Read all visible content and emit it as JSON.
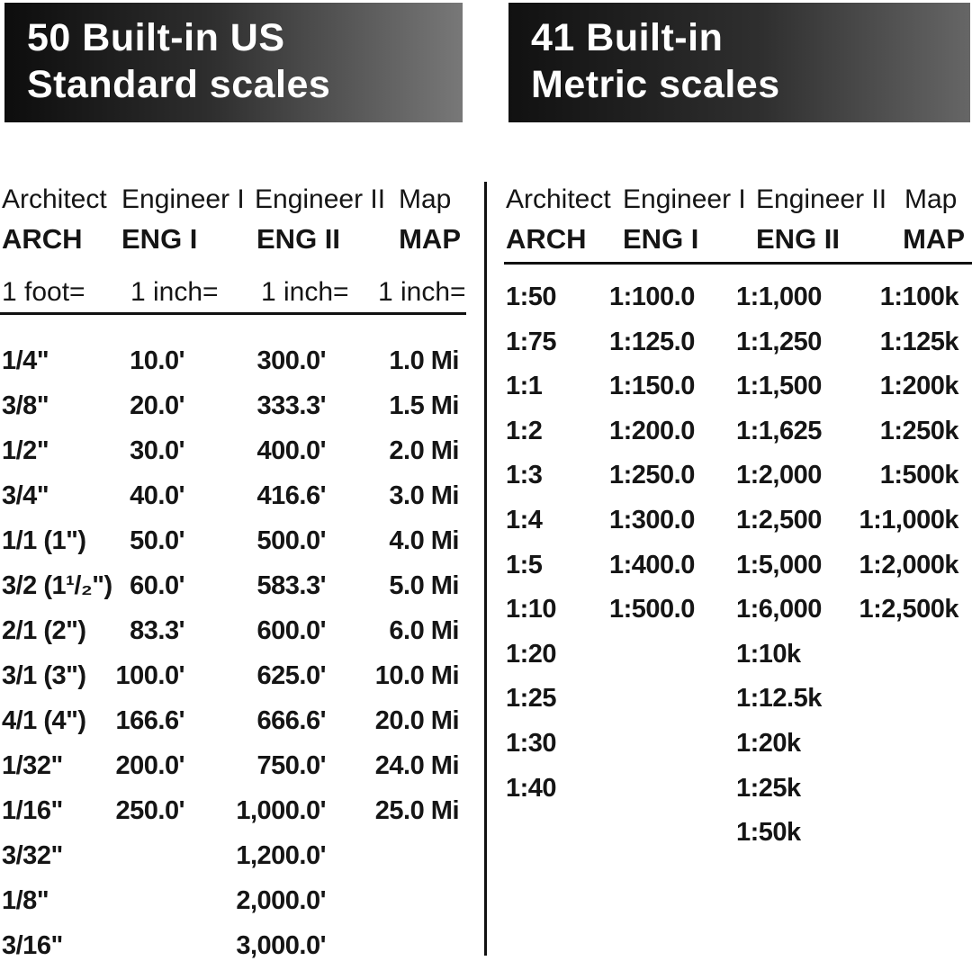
{
  "banners": {
    "us": {
      "line1": "50 Built-in US",
      "line2": "Standard scales"
    },
    "metric": {
      "line1": "41 Built-in",
      "line2": "Metric scales"
    }
  },
  "colors": {
    "banner_dark": "#0d0d0d",
    "banner_light": "#787878",
    "text": "#151515",
    "rule": "#111111",
    "background": "#ffffff"
  },
  "us_table": {
    "col_headers": [
      "Architect",
      "Engineer I",
      "Engineer II",
      "Map"
    ],
    "col_abbrevs": [
      "ARCH",
      "ENG I",
      "ENG II",
      "MAP"
    ],
    "unit_row": [
      "1 foot=",
      "1 inch=",
      "1 inch=",
      "1 inch="
    ],
    "rows": [
      [
        "1/4\"",
        "10.0'",
        "300.0'",
        "1.0 Mi"
      ],
      [
        "3/8\"",
        "20.0'",
        "333.3'",
        "1.5 Mi"
      ],
      [
        "1/2\"",
        "30.0'",
        "400.0'",
        "2.0 Mi"
      ],
      [
        "3/4\"",
        "40.0'",
        "416.6'",
        "3.0 Mi"
      ],
      [
        "1/1 (1\")",
        "50.0'",
        "500.0'",
        "4.0 Mi"
      ],
      [
        "3/2 (1¹/₂\")",
        "60.0'",
        "583.3'",
        "5.0 Mi"
      ],
      [
        "2/1 (2\")",
        "83.3'",
        "600.0'",
        "6.0 Mi"
      ],
      [
        "3/1 (3\")",
        "100.0'",
        "625.0'",
        "10.0 Mi"
      ],
      [
        "4/1 (4\")",
        "166.6'",
        "666.6'",
        "20.0 Mi"
      ],
      [
        "1/32\"",
        "200.0'",
        "750.0'",
        "24.0 Mi"
      ],
      [
        "1/16\"",
        "250.0'",
        "1,000.0'",
        "25.0 Mi"
      ],
      [
        "3/32\"",
        "",
        "1,200.0'",
        ""
      ],
      [
        "1/8\"",
        "",
        "2,000.0'",
        ""
      ],
      [
        "3/16\"",
        "",
        "3,000.0'",
        ""
      ]
    ]
  },
  "metric_table": {
    "col_headers": [
      "Architect",
      "Engineer I",
      "Engineer II",
      "Map"
    ],
    "col_abbrevs": [
      "ARCH",
      "ENG I",
      "ENG II",
      "MAP"
    ],
    "rows": [
      [
        "1:50",
        "1:100.0",
        "1:1,000",
        "1:100k"
      ],
      [
        "1:75",
        "1:125.0",
        "1:1,250",
        "1:125k"
      ],
      [
        "1:1",
        "1:150.0",
        "1:1,500",
        "1:200k"
      ],
      [
        "1:2",
        "1:200.0",
        "1:1,625",
        "1:250k"
      ],
      [
        "1:3",
        "1:250.0",
        "1:2,000",
        "1:500k"
      ],
      [
        "1:4",
        "1:300.0",
        "1:2,500",
        "1:1,000k"
      ],
      [
        "1:5",
        "1:400.0",
        "1:5,000",
        "1:2,000k"
      ],
      [
        "1:10",
        "1:500.0",
        "1:6,000",
        "1:2,500k"
      ],
      [
        "1:20",
        "",
        "1:10k",
        ""
      ],
      [
        "1:25",
        "",
        "1:12.5k",
        ""
      ],
      [
        "1:30",
        "",
        "1:20k",
        ""
      ],
      [
        "1:40",
        "",
        "1:25k",
        ""
      ],
      [
        "",
        "",
        "1:50k",
        ""
      ]
    ]
  }
}
